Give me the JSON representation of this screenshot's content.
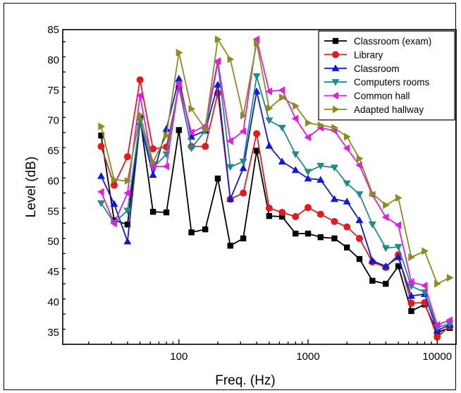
{
  "chart_data": {
    "type": "line",
    "xlabel": "Freq.  (Hz)",
    "ylabel": "Level (dB)",
    "xscale": "log",
    "xlim": [
      12.6,
      14000
    ],
    "ylim": [
      33,
      85
    ],
    "x_ticks": [
      100,
      1000,
      10000
    ],
    "x_tick_labels": [
      "100",
      "1000",
      "10000"
    ],
    "y_ticks": [
      35,
      40,
      45,
      50,
      55,
      60,
      65,
      70,
      75,
      80,
      85
    ],
    "y_tick_labels": [
      "35",
      "40",
      "45",
      "50",
      "55",
      "60",
      "65",
      "70",
      "75",
      "80",
      "85"
    ],
    "grid": false,
    "legend_position": "top-right",
    "x": [
      25,
      31.5,
      40,
      50,
      63,
      80,
      100,
      125,
      160,
      200,
      250,
      315,
      400,
      500,
      630,
      800,
      1000,
      1250,
      1600,
      2000,
      2500,
      3150,
      4000,
      5000,
      6300,
      8000,
      10000,
      12500
    ],
    "series": [
      {
        "name": "Classroom (exam)",
        "color": "#000000",
        "marker": "square",
        "values": [
          67.5,
          53.5,
          52.8,
          70.5,
          54.9,
          54.8,
          68.4,
          51.5,
          52.0,
          60.4,
          49.3,
          50.5,
          65.0,
          54.2,
          54.1,
          51.3,
          51.3,
          50.7,
          50.5,
          49.0,
          47.1,
          43.5,
          43.0,
          45.9,
          38.5,
          39.6,
          35.0,
          35.7
        ]
      },
      {
        "name": "Library",
        "color": "#e8191c",
        "marker": "circle",
        "values": [
          65.7,
          59.3,
          64.0,
          76.7,
          65.3,
          65.6,
          75.5,
          65.7,
          65.7,
          74.5,
          57.0,
          58.0,
          67.8,
          55.5,
          54.8,
          54.1,
          55.6,
          54.5,
          53.3,
          52.4,
          50.5,
          46.6,
          45.7,
          47.8,
          39.8,
          39.9,
          34.2,
          36.0
        ]
      },
      {
        "name": "Classroom",
        "color": "#1018e0",
        "marker": "triangle-up",
        "values": [
          60.8,
          56.2,
          50.0,
          69.7,
          61.0,
          68.6,
          76.9,
          67.3,
          68.3,
          75.9,
          57.0,
          62.1,
          74.8,
          65.8,
          63.2,
          61.8,
          60.4,
          60.2,
          57.0,
          56.6,
          53.5,
          46.8,
          45.9,
          47.4,
          41.0,
          41.3,
          35.3,
          36.2
        ]
      },
      {
        "name": "Computers rooms",
        "color": "#1f8c8c",
        "marker": "triangle-down",
        "values": [
          56.3,
          53.1,
          55.1,
          70.0,
          62.2,
          64.4,
          76.0,
          65.4,
          68.3,
          79.5,
          62.3,
          63.2,
          77.3,
          70.0,
          68.8,
          64.4,
          61.5,
          62.5,
          62.2,
          59.6,
          57.8,
          52.8,
          48.9,
          49.1,
          42.6,
          41.6,
          35.8,
          36.4
        ]
      },
      {
        "name": "Common hall",
        "color": "#e619e6",
        "marker": "triangle-left",
        "values": [
          58.2,
          53.0,
          58.0,
          74.1,
          62.4,
          62.4,
          76.0,
          68.0,
          69.1,
          79.8,
          66.6,
          68.2,
          83.4,
          74.8,
          75.0,
          70.3,
          67.2,
          68.8,
          68.3,
          65.4,
          62.6,
          57.7,
          54.0,
          52.7,
          43.3,
          42.7,
          36.2,
          37.0
        ]
      },
      {
        "name": "Adapted hallway",
        "color": "#8c8c1e",
        "marker": "triangle-right",
        "values": [
          69.0,
          60.2,
          60.0,
          70.9,
          63.1,
          67.5,
          81.2,
          71.9,
          68.6,
          83.4,
          80.1,
          70.8,
          82.8,
          72.0,
          73.8,
          72.4,
          69.6,
          69.2,
          68.8,
          67.3,
          63.7,
          57.9,
          56.0,
          57.2,
          47.4,
          48.4,
          43.0,
          44.0
        ]
      }
    ]
  }
}
